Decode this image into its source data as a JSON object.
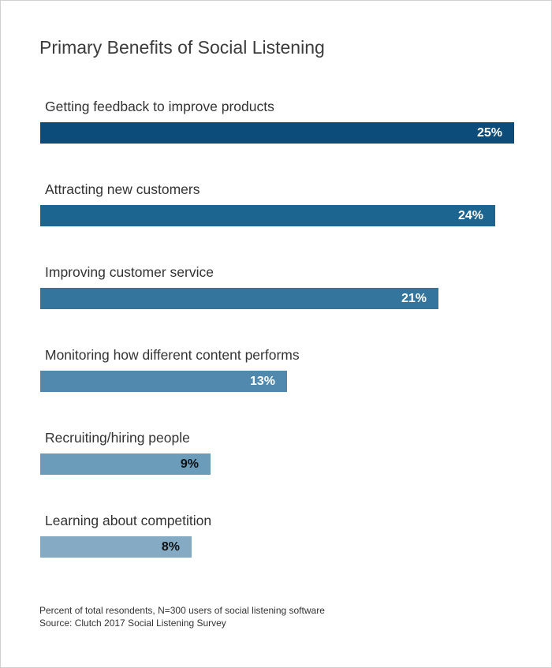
{
  "chart_data": {
    "type": "bar",
    "orientation": "horizontal",
    "title": "Primary Benefits of Social Listening",
    "categories": [
      "Getting feedback to improve products",
      "Attracting new customers",
      "Improving customer service",
      "Monitoring how different content performs",
      "Recruiting/hiring people",
      "Learning about competition"
    ],
    "values": [
      25,
      24,
      21,
      13,
      9,
      8
    ],
    "value_labels": [
      "25%",
      "24%",
      "21%",
      "13%",
      "9%",
      "8%"
    ],
    "unit": "%",
    "xlim": [
      0,
      25
    ],
    "grid": false,
    "legend": "none",
    "bar_colors": [
      "#0b4c7b",
      "#1d6591",
      "#33759d",
      "#5089ad",
      "#6b9cb9",
      "#85aac3"
    ],
    "value_label_colors": [
      "#ffffff",
      "#ffffff",
      "#ffffff",
      "#ffffff",
      "#111111",
      "#111111"
    ]
  },
  "footnote": {
    "line1": "Percent of total resondents, N=300 users of social listening software",
    "line2": "Source: Clutch 2017 Social Listening Survey"
  }
}
